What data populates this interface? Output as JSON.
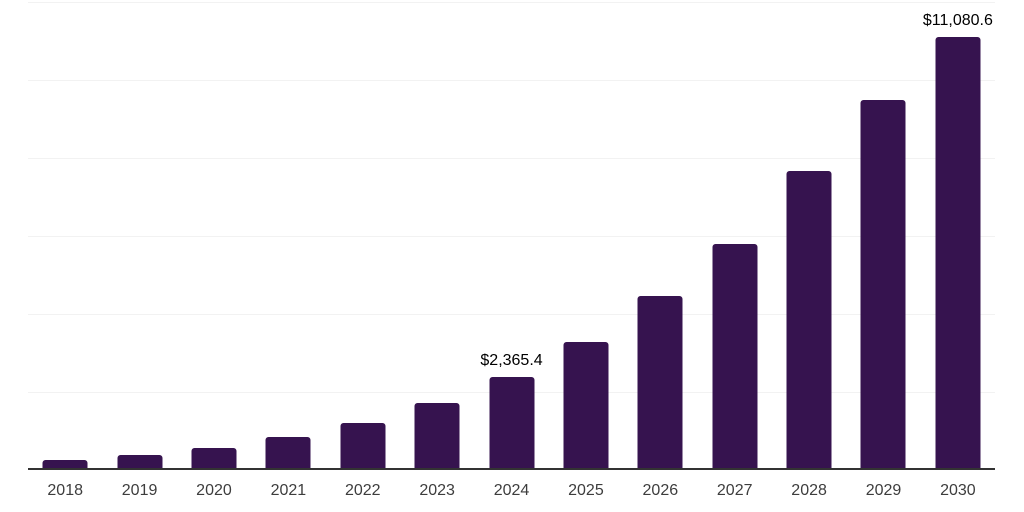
{
  "chart_data": {
    "type": "bar",
    "title": "",
    "xlabel": "",
    "ylabel": "",
    "categories": [
      "2018",
      "2019",
      "2020",
      "2021",
      "2022",
      "2023",
      "2024",
      "2025",
      "2026",
      "2027",
      "2028",
      "2029",
      "2030"
    ],
    "values": [
      240,
      350,
      530,
      810,
      1190,
      1690,
      2365.4,
      3260,
      4440,
      5780,
      7630,
      9460,
      11080.6
    ],
    "data_labels": {
      "2024": "$2,365.4",
      "2030": "$11,080.6"
    },
    "ylim": [
      0,
      12000
    ],
    "grid_step": 2000,
    "grid": true,
    "legend": false,
    "colors": {
      "bar": "#36134f",
      "gridline": "#f2f2f2",
      "axis": "#333333",
      "tick_label": "#3d3d3d",
      "data_label": "#000000",
      "background": "#ffffff"
    }
  }
}
